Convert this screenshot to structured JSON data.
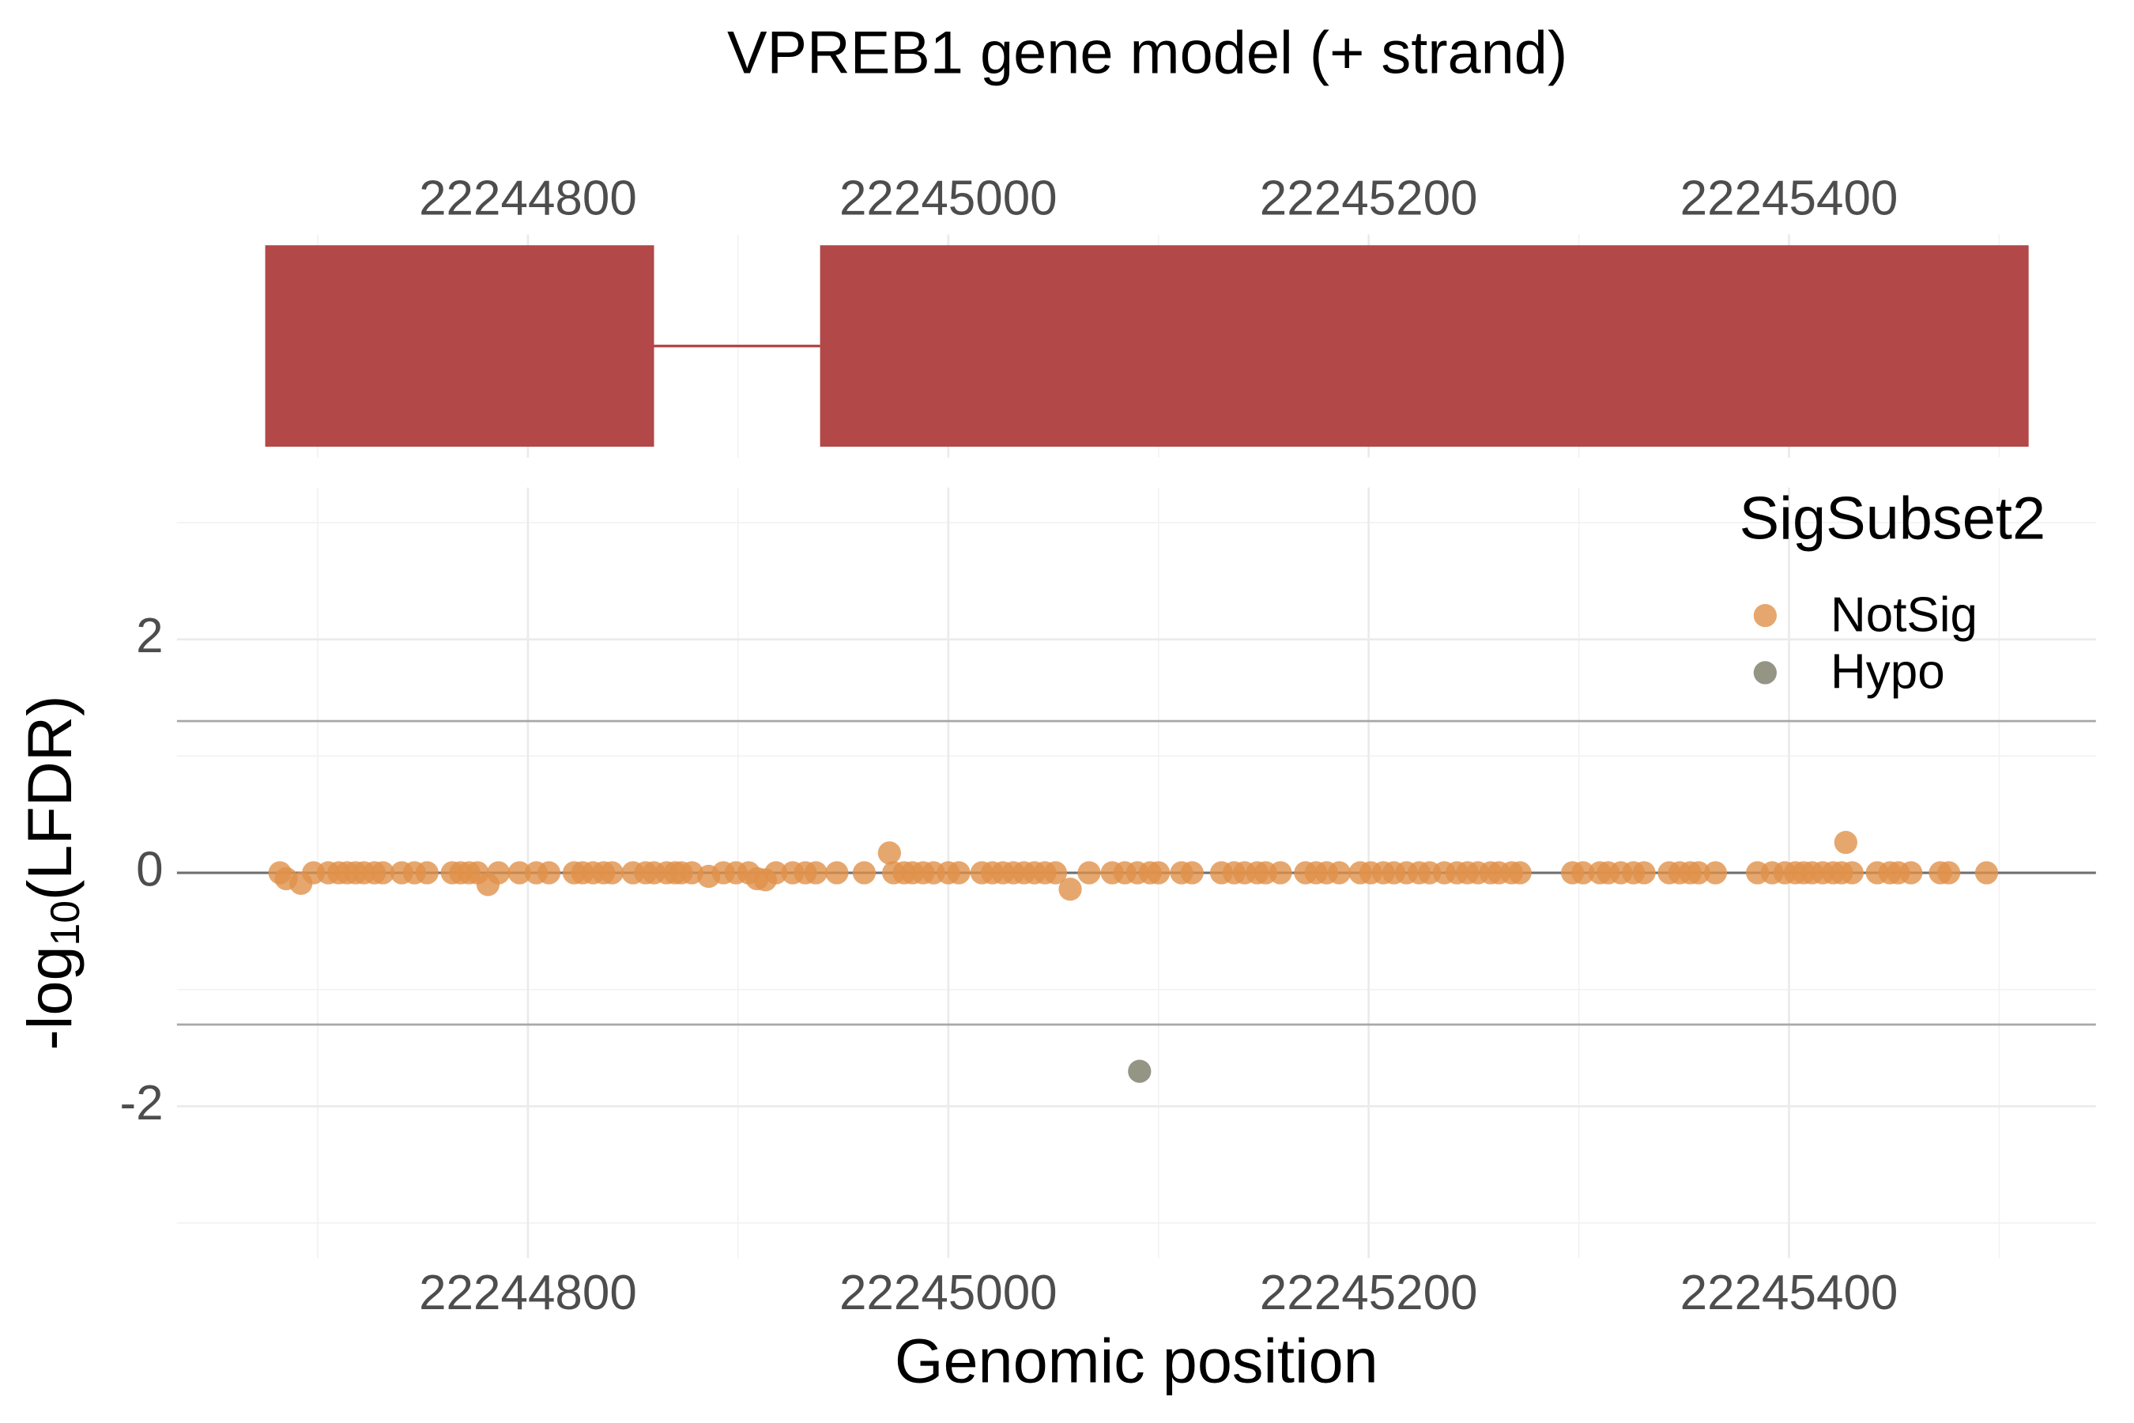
{
  "chart_data": [
    {
      "type": "gene_model",
      "title": "VPREB1 gene model (+ strand)",
      "color": "#b24848",
      "exons": [
        {
          "start": 22244675,
          "end": 22244860
        },
        {
          "start": 22244939,
          "end": 22245514
        }
      ],
      "xlim": [
        22244633,
        22245546
      ],
      "xticks": [
        22244800,
        22245000,
        22245200,
        22245400
      ],
      "xminor": [
        22244700,
        22244900,
        22245100,
        22245300,
        22245500
      ],
      "grid": true
    },
    {
      "type": "scatter",
      "xlabel": "Genomic position",
      "ylabel": {
        "prefix": "-log",
        "sub": "10",
        "suffix": "(LFDR)"
      },
      "legend_title": "SigSubset2",
      "legend": "top-right",
      "xlim": [
        22244633,
        22245546
      ],
      "xticks": [
        22244800,
        22245000,
        22245200,
        22245400
      ],
      "xminor": [
        22244700,
        22244900,
        22245100,
        22245300,
        22245500
      ],
      "ylim": [
        -3.3,
        3.3
      ],
      "yticks": [
        -2,
        0,
        2
      ],
      "yminor": [
        -3,
        -1,
        1,
        3
      ],
      "reference_lines": [
        1.3,
        -1.3
      ],
      "zero_line": 0,
      "grid": true,
      "series": [
        {
          "name": "NotSig",
          "color": "#e0914a",
          "x": [
            22244682,
            22244685,
            22244692,
            22244698,
            22244705,
            22244710,
            22244714,
            22244718,
            22244722,
            22244727,
            22244731,
            22244740,
            22244746,
            22244752,
            22244764,
            22244768,
            22244772,
            22244776,
            22244781,
            22244786,
            22244796,
            22244804,
            22244810,
            22244822,
            22244826,
            22244831,
            22244836,
            22244840,
            22244850,
            22244856,
            22244860,
            22244866,
            22244870,
            22244873,
            22244878,
            22244886,
            22244893,
            22244899,
            22244905,
            22244909,
            22244913,
            22244918,
            22244926,
            22244932,
            22244937,
            22244947,
            22244960,
            22244972,
            22244974,
            22244979,
            22244983,
            22244988,
            22244993,
            22245000,
            22245005,
            22245016,
            22245021,
            22245026,
            22245031,
            22245036,
            22245041,
            22245046,
            22245051,
            22245058,
            22245067,
            22245078,
            22245084,
            22245090,
            22245096,
            22245100,
            22245111,
            22245116,
            22245130,
            22245136,
            22245141,
            22245147,
            22245151,
            22245158,
            22245170,
            22245175,
            22245180,
            22245186,
            22245196,
            22245201,
            22245207,
            22245212,
            22245218,
            22245224,
            22245229,
            22245236,
            22245242,
            22245247,
            22245252,
            22245258,
            22245262,
            22245268,
            22245272,
            22245297,
            22245302,
            22245310,
            22245314,
            22245320,
            22245326,
            22245331,
            22245343,
            22245348,
            22245353,
            22245357,
            22245365,
            22245385,
            22245392,
            22245398,
            22245403,
            22245407,
            22245411,
            22245416,
            22245421,
            22245425,
            22245427,
            22245430,
            22245442,
            22245448,
            22245452,
            22245458,
            22245472,
            22245476,
            22245494
          ],
          "values": [
            0,
            -0.05,
            -0.09,
            0,
            0,
            0,
            0,
            0,
            0,
            0,
            0,
            0,
            0,
            0,
            0,
            0,
            0,
            0,
            -0.1,
            0,
            0,
            0,
            0,
            0,
            0,
            0,
            0,
            0,
            0,
            0,
            0,
            0,
            0,
            0,
            0,
            -0.03,
            0,
            0,
            0,
            -0.05,
            -0.06,
            0,
            0,
            0,
            0,
            0,
            0,
            0.17,
            0,
            0,
            0,
            0,
            0,
            0,
            0,
            0,
            0,
            0,
            0,
            0,
            0,
            0,
            0,
            -0.14,
            0,
            0,
            0,
            0,
            0,
            0,
            0,
            0,
            0,
            0,
            0,
            0,
            0,
            0,
            0,
            0,
            0,
            0,
            0,
            0,
            0,
            0,
            0,
            0,
            0,
            0,
            0,
            0,
            0,
            0,
            0,
            0,
            0,
            0,
            0,
            0,
            0,
            0,
            0,
            0,
            0,
            0,
            0,
            0,
            0,
            0,
            0,
            0,
            0,
            0,
            0,
            0,
            0,
            0,
            0.26,
            0,
            0,
            0,
            0,
            0,
            0,
            0,
            0
          ]
        },
        {
          "name": "Hypo",
          "color": "#7b7a68",
          "x": [
            22245091
          ],
          "values": [
            -1.7
          ]
        }
      ]
    }
  ]
}
